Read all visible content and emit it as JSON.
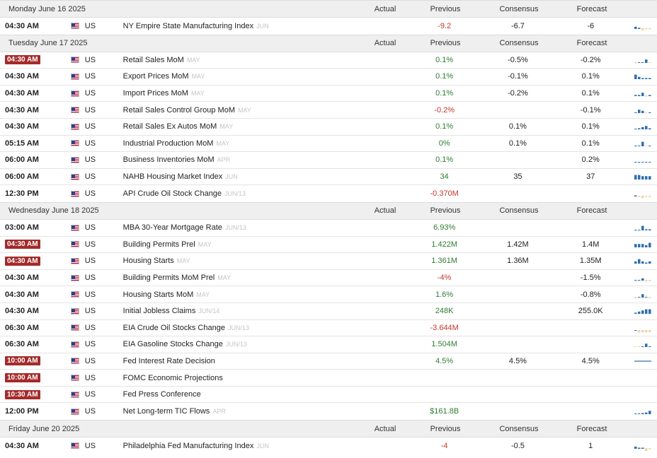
{
  "colors": {
    "positive": "#2e7d32",
    "negative": "#c0392b",
    "highlight": "#a52a2a",
    "spark_blue": "#2e6fb0",
    "spark_tan": "#f0d4a8"
  },
  "columns": {
    "actual": "Actual",
    "previous": "Previous",
    "consensus": "Consensus",
    "forecast": "Forecast"
  },
  "days": [
    {
      "date": "Monday June 16 2025",
      "events": [
        {
          "time": "04:30 AM",
          "highlight": false,
          "country": "US",
          "name": "NY Empire State Manufacturing Index",
          "period": "JUN",
          "actual": "",
          "previous": "-9.2",
          "previous_tone": "neg",
          "consensus": "-6.7",
          "forecast": "-6",
          "spark_icon": "mixed-negative",
          "spark": [
            2,
            1,
            -2,
            -1,
            -1
          ]
        }
      ]
    },
    {
      "date": "Tuesday June 17 2025",
      "events": [
        {
          "time": "04:30 AM",
          "highlight": true,
          "country": "US",
          "name": "Retail Sales MoM",
          "period": "MAY",
          "actual": "",
          "previous": "0.1%",
          "previous_tone": "pos",
          "consensus": "-0.5%",
          "forecast": "-0.2%",
          "spark_icon": "mixed",
          "spark": [
            -1,
            0.5,
            0.5,
            3,
            -0.5
          ]
        },
        {
          "time": "04:30 AM",
          "highlight": false,
          "country": "US",
          "name": "Export Prices MoM",
          "period": "MAY",
          "actual": "",
          "previous": "0.1%",
          "previous_tone": "pos",
          "consensus": "-0.1%",
          "forecast": "0.1%",
          "spark_icon": "positive",
          "spark": [
            4,
            2,
            1,
            1,
            1
          ]
        },
        {
          "time": "04:30 AM",
          "highlight": false,
          "country": "US",
          "name": "Import Prices MoM",
          "period": "MAY",
          "actual": "",
          "previous": "0.1%",
          "previous_tone": "pos",
          "consensus": "-0.2%",
          "forecast": "0.1%",
          "spark_icon": "mixed",
          "spark": [
            1,
            1,
            3,
            -1,
            1
          ]
        },
        {
          "time": "04:30 AM",
          "highlight": false,
          "country": "US",
          "name": "Retail Sales Control Group MoM",
          "period": "MAY",
          "actual": "",
          "previous": "-0.2%",
          "previous_tone": "neg",
          "consensus": "",
          "forecast": "-0.1%",
          "spark_icon": "mixed",
          "spark": [
            0.5,
            3,
            2,
            -0.5,
            0
          ]
        },
        {
          "time": "04:30 AM",
          "highlight": false,
          "country": "US",
          "name": "Retail Sales Ex Autos MoM",
          "period": "MAY",
          "actual": "",
          "previous": "0.1%",
          "previous_tone": "pos",
          "consensus": "0.1%",
          "forecast": "0.1%",
          "spark_icon": "positive",
          "spark": [
            0.5,
            1,
            2,
            3,
            1
          ]
        },
        {
          "time": "05:15 AM",
          "highlight": false,
          "country": "US",
          "name": "Industrial Production MoM",
          "period": "MAY",
          "actual": "",
          "previous": "0%",
          "previous_tone": "pos",
          "consensus": "0.1%",
          "forecast": "0.1%",
          "spark_icon": "mixed",
          "spark": [
            0.5,
            0.5,
            4,
            -0.5,
            0
          ]
        },
        {
          "time": "06:00 AM",
          "highlight": false,
          "country": "US",
          "name": "Business Inventories MoM",
          "period": "APR",
          "actual": "",
          "previous": "0.1%",
          "previous_tone": "pos",
          "consensus": "",
          "forecast": "0.2%",
          "spark_icon": "positive",
          "spark": [
            0.5,
            0,
            0.5,
            0.5,
            0.5
          ]
        },
        {
          "time": "06:00 AM",
          "highlight": false,
          "country": "US",
          "name": "NAHB Housing Market Index",
          "period": "JUN",
          "actual": "",
          "previous": "34",
          "previous_tone": "pos",
          "consensus": "35",
          "forecast": "37",
          "spark_icon": "positive",
          "spark": [
            4,
            4,
            3,
            3,
            3
          ]
        },
        {
          "time": "12:30 PM",
          "highlight": false,
          "country": "US",
          "name": "API Crude Oil Stock Change",
          "period": "JUN/13",
          "actual": "",
          "previous": "-0.370M",
          "previous_tone": "neg",
          "consensus": "",
          "forecast": "",
          "spark_icon": "negative",
          "spark": [
            1,
            -1,
            -2,
            -1,
            -1
          ]
        }
      ]
    },
    {
      "date": "Wednesday June 18 2025",
      "events": [
        {
          "time": "03:00 AM",
          "highlight": false,
          "country": "US",
          "name": "MBA 30-Year Mortgage Rate",
          "period": "JUN/13",
          "actual": "",
          "previous": "6.93%",
          "previous_tone": "pos",
          "consensus": "",
          "forecast": "",
          "spark_icon": "positive",
          "spark": [
            0.5,
            0.5,
            4,
            1,
            1
          ]
        },
        {
          "time": "04:30 AM",
          "highlight": true,
          "country": "US",
          "name": "Building Permits Prel",
          "period": "MAY",
          "actual": "",
          "previous": "1.422M",
          "previous_tone": "pos",
          "consensus": "1.42M",
          "forecast": "1.4M",
          "spark_icon": "positive",
          "spark": [
            3,
            3,
            3,
            2,
            4
          ]
        },
        {
          "time": "04:30 AM",
          "highlight": true,
          "country": "US",
          "name": "Housing Starts",
          "period": "MAY",
          "actual": "",
          "previous": "1.361M",
          "previous_tone": "pos",
          "consensus": "1.36M",
          "forecast": "1.35M",
          "spark_icon": "positive",
          "spark": [
            2,
            4,
            2,
            1,
            2
          ]
        },
        {
          "time": "04:30 AM",
          "highlight": false,
          "country": "US",
          "name": "Building Permits MoM Prel",
          "period": "MAY",
          "actual": "",
          "previous": "-4%",
          "previous_tone": "neg",
          "consensus": "",
          "forecast": "-1.5%",
          "spark_icon": "mixed",
          "spark": [
            0.5,
            0.5,
            2,
            -1,
            -1
          ]
        },
        {
          "time": "04:30 AM",
          "highlight": false,
          "country": "US",
          "name": "Housing Starts MoM",
          "period": "MAY",
          "actual": "",
          "previous": "1.6%",
          "previous_tone": "pos",
          "consensus": "",
          "forecast": "-0.8%",
          "spark_icon": "mixed",
          "spark": [
            -1,
            0.5,
            3,
            0.5,
            -1
          ]
        },
        {
          "time": "04:30 AM",
          "highlight": false,
          "country": "US",
          "name": "Initial Jobless Claims",
          "period": "JUN/14",
          "actual": "",
          "previous": "248K",
          "previous_tone": "pos",
          "consensus": "",
          "forecast": "255.0K",
          "spark_icon": "positive",
          "spark": [
            1,
            2,
            3,
            4,
            4
          ]
        },
        {
          "time": "06:30 AM",
          "highlight": false,
          "country": "US",
          "name": "EIA Crude Oil Stocks Change",
          "period": "JUN/13",
          "actual": "",
          "previous": "-3.644M",
          "previous_tone": "neg",
          "consensus": "",
          "forecast": "",
          "spark_icon": "negative",
          "spark": [
            0.5,
            -2,
            -2,
            -2,
            -2
          ]
        },
        {
          "time": "06:30 AM",
          "highlight": false,
          "country": "US",
          "name": "EIA Gasoline Stocks Change",
          "period": "JUN/13",
          "actual": "",
          "previous": "1.504M",
          "previous_tone": "pos",
          "consensus": "",
          "forecast": "",
          "spark_icon": "mixed",
          "spark": [
            -0.5,
            -0.5,
            0.5,
            3,
            0.5
          ]
        },
        {
          "time": "10:00 AM",
          "highlight": true,
          "country": "US",
          "name": "Fed Interest Rate Decision",
          "period": "",
          "actual": "",
          "previous": "4.5%",
          "previous_tone": "pos",
          "consensus": "4.5%",
          "forecast": "4.5%",
          "spark_icon": "flat",
          "spark": []
        },
        {
          "time": "10:00 AM",
          "highlight": true,
          "country": "US",
          "name": "FOMC Economic Projections",
          "period": "",
          "actual": "",
          "previous": "",
          "previous_tone": "pos",
          "consensus": "",
          "forecast": "",
          "spark_icon": "",
          "spark": []
        },
        {
          "time": "10:30 AM",
          "highlight": true,
          "country": "US",
          "name": "Fed Press Conference",
          "period": "",
          "actual": "",
          "previous": "",
          "previous_tone": "pos",
          "consensus": "",
          "forecast": "",
          "spark_icon": "",
          "spark": []
        },
        {
          "time": "12:00 PM",
          "highlight": false,
          "country": "US",
          "name": "Net Long-term TIC Flows",
          "period": "APR",
          "actual": "",
          "previous": "$161.8B",
          "previous_tone": "pos",
          "consensus": "",
          "forecast": "",
          "spark_icon": "positive",
          "spark": [
            0.5,
            0,
            1,
            1.5,
            3
          ]
        }
      ]
    },
    {
      "date": "Friday June 20 2025",
      "events": [
        {
          "time": "04:30 AM",
          "highlight": false,
          "country": "US",
          "name": "Philadelphia Fed Manufacturing Index",
          "period": "JUN",
          "actual": "",
          "previous": "-4",
          "previous_tone": "neg",
          "consensus": "-0.5",
          "forecast": "1",
          "spark_icon": "mixed",
          "spark": [
            2,
            1,
            1,
            -3,
            -1
          ]
        }
      ]
    }
  ]
}
